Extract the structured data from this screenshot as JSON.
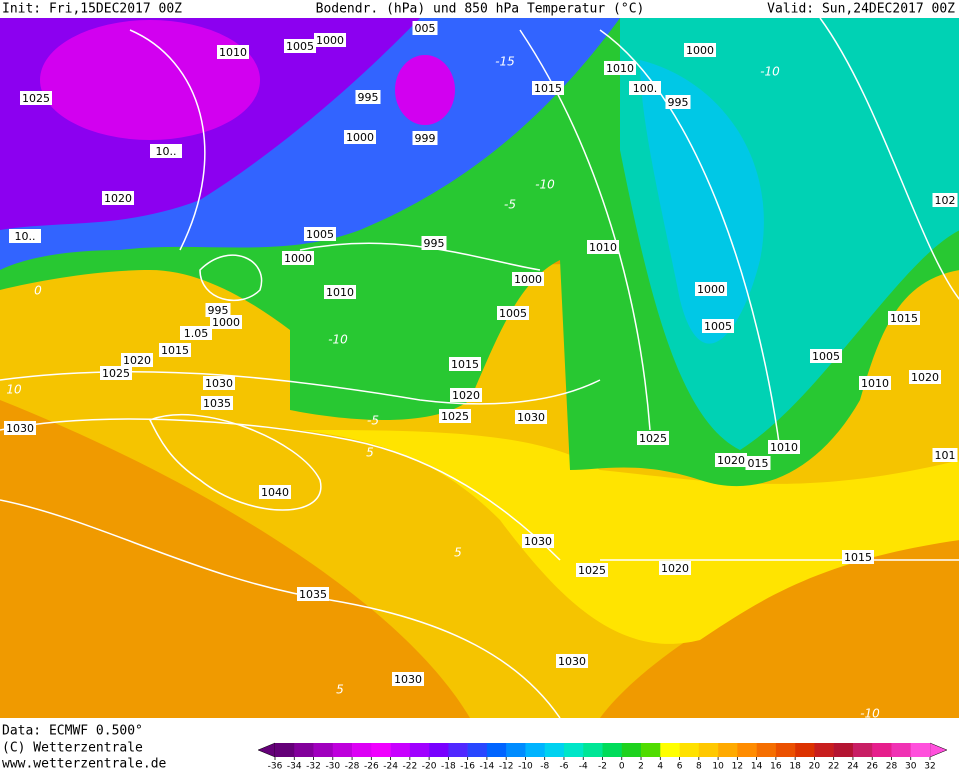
{
  "header": {
    "init": "Init: Fri,15DEC2017 00Z",
    "title": "Bodendr. (hPa) und 850 hPa Temperatur (°C)",
    "valid": "Valid: Sun,24DEC2017 00Z"
  },
  "footer": {
    "data": "Data: ECMWF  0.500°",
    "copyright": "(C) Wetterzentrale",
    "url": "www.wetterzentrale.de"
  },
  "isobar_labels": [
    "1010",
    "1005",
    "1000",
    "005",
    "1000",
    "1010",
    "1015",
    "100.",
    "995",
    "995",
    "1025",
    "10..",
    "1000",
    "999",
    "1020",
    "10..",
    "1005",
    "1000",
    "995",
    "1010",
    "1000",
    "1010",
    "1005",
    "1000",
    "1005",
    "1015",
    "1005",
    "995",
    "1000",
    "1.05",
    "1015",
    "1020",
    "1025",
    "1030",
    "1035",
    "1015",
    "1020",
    "1025",
    "1030",
    "1010",
    "1020",
    "1025",
    "1010",
    "1020",
    "015",
    "1040",
    "1030",
    "1030",
    "1025",
    "1020",
    "1015",
    "1035",
    "1030",
    "1030",
    "102",
    "101"
  ],
  "temperature_labels": [
    "-10",
    "-15",
    "-10",
    "-5",
    "-10",
    "-5",
    "5",
    "5",
    "0",
    "10",
    "5",
    "-10"
  ],
  "colorbar": {
    "ticks": [
      -36,
      -34,
      -32,
      -30,
      -28,
      -26,
      -24,
      -22,
      -20,
      -18,
      -16,
      -14,
      -12,
      -10,
      -8,
      -6,
      -4,
      -2,
      0,
      2,
      4,
      6,
      8,
      10,
      12,
      14,
      16,
      18,
      20,
      22,
      24,
      26,
      28,
      30,
      32
    ],
    "colors": [
      "#640078",
      "#82009b",
      "#a000be",
      "#be00dc",
      "#dc00f5",
      "#f000ff",
      "#c800ff",
      "#a000ff",
      "#7800ff",
      "#5028ff",
      "#2846ff",
      "#0064ff",
      "#008cff",
      "#00b4ff",
      "#00d2f0",
      "#00e6c8",
      "#00e696",
      "#00dc5a",
      "#1ed21e",
      "#50dc00",
      "#ffff00",
      "#ffe100",
      "#ffc800",
      "#ffaa00",
      "#ff8c00",
      "#f56e00",
      "#eb5000",
      "#dc3200",
      "#c81e1e",
      "#b41432",
      "#c81e64",
      "#e61e8c",
      "#f032b4",
      "#ff50dc"
    ]
  }
}
